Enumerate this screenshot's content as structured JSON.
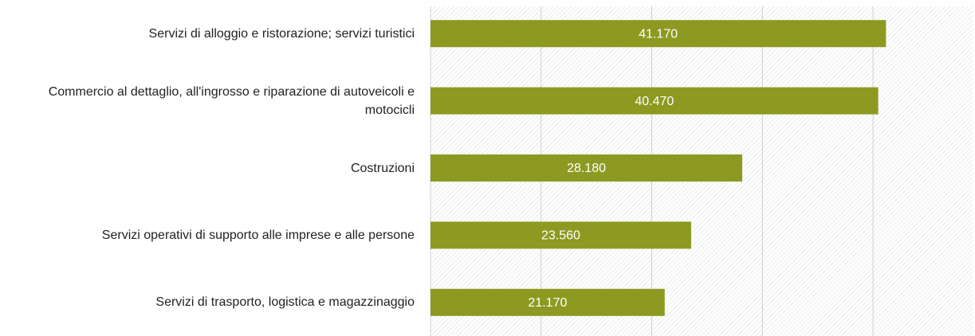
{
  "chart_data": {
    "type": "bar",
    "orientation": "horizontal",
    "categories": [
      "Servizi di alloggio e ristorazione; servizi turistici",
      "Commercio al dettaglio, all'ingrosso e riparazione di autoveicoli e motocicli",
      "Costruzioni",
      "Servizi operativi di supporto alle imprese e alle persone",
      "Servizi di trasporto, logistica e magazzinaggio"
    ],
    "values": [
      41170,
      40470,
      28180,
      23560,
      21170
    ],
    "value_labels": [
      "41.170",
      "40.470",
      "28.180",
      "23.560",
      "21.170"
    ],
    "color": "#8c9a22",
    "xlim": [
      0,
      49000
    ],
    "xticks": [
      0,
      10000,
      20000,
      30000,
      40000
    ],
    "grid": true
  }
}
